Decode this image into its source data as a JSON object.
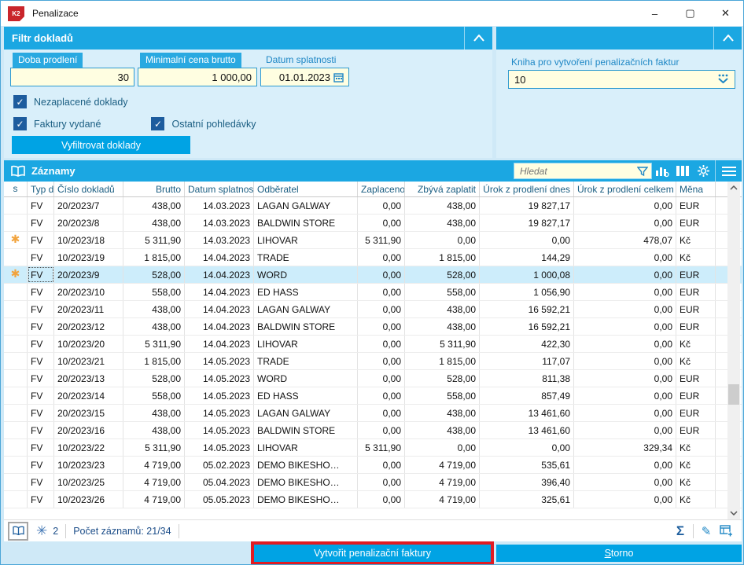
{
  "window": {
    "title": "Penalizace",
    "minimize": "–",
    "maximize": "▢",
    "close": "✕"
  },
  "filter_panel": {
    "title": "Filtr dokladů",
    "fields": [
      {
        "label": "Doba prodlení",
        "value": "30"
      },
      {
        "label": "Minimalní cena brutto",
        "value": "1 000,00"
      },
      {
        "label": "Datum splatnosti",
        "value": "01.01.2023"
      }
    ],
    "checkboxes": [
      {
        "label": "Nezaplacené doklady",
        "checked": "✓"
      },
      {
        "label": "Faktury vydané",
        "checked": "✓"
      },
      {
        "label": "Ostatní pohledávky",
        "checked": "✓"
      }
    ],
    "filter_button": "Vyfiltrovat doklady"
  },
  "book_panel": {
    "label": "Kniha pro vytvoření penalizačních faktur",
    "value": "10"
  },
  "records": {
    "title": "Záznamy",
    "search_placeholder": "Hledat",
    "columns": [
      "s",
      "Typ d",
      "Číslo dokladů",
      "Brutto",
      "Datum splatnosti",
      "Odběratel",
      "Zaplaceno",
      "Zbývá zaplatit",
      "Úrok z prodlení dnes",
      "Úrok z prodlení celkem",
      "Měna"
    ],
    "rows": [
      {
        "s": "",
        "typ": "FV",
        "cislo": "20/2023/7",
        "brutto": "438,00",
        "datum": "14.03.2023",
        "odberatel": "LAGAN GALWAY",
        "zaplaceno": "0,00",
        "zbyva": "438,00",
        "urok_dnes": "19 827,17",
        "urok_celkem": "0,00",
        "mena": "EUR",
        "selected": false
      },
      {
        "s": "",
        "typ": "FV",
        "cislo": "20/2023/8",
        "brutto": "438,00",
        "datum": "14.03.2023",
        "odberatel": "BALDWIN STORE",
        "zaplaceno": "0,00",
        "zbyva": "438,00",
        "urok_dnes": "19 827,17",
        "urok_celkem": "0,00",
        "mena": "EUR",
        "selected": false
      },
      {
        "s": "*",
        "typ": "FV",
        "cislo": "10/2023/18",
        "brutto": "5 311,90",
        "datum": "14.03.2023",
        "odberatel": "LIHOVAR",
        "zaplaceno": "5 311,90",
        "zbyva": "0,00",
        "urok_dnes": "0,00",
        "urok_celkem": "478,07",
        "mena": "Kč",
        "selected": false
      },
      {
        "s": "",
        "typ": "FV",
        "cislo": "10/2023/19",
        "brutto": "1 815,00",
        "datum": "14.04.2023",
        "odberatel": "TRADE",
        "zaplaceno": "0,00",
        "zbyva": "1 815,00",
        "urok_dnes": "144,29",
        "urok_celkem": "0,00",
        "mena": "Kč",
        "selected": false
      },
      {
        "s": "*",
        "typ": "FV",
        "cislo": "20/2023/9",
        "brutto": "528,00",
        "datum": "14.04.2023",
        "odberatel": "WORD",
        "zaplaceno": "0,00",
        "zbyva": "528,00",
        "urok_dnes": "1 000,08",
        "urok_celkem": "0,00",
        "mena": "EUR",
        "selected": true
      },
      {
        "s": "",
        "typ": "FV",
        "cislo": "20/2023/10",
        "brutto": "558,00",
        "datum": "14.04.2023",
        "odberatel": "ED HASS",
        "zaplaceno": "0,00",
        "zbyva": "558,00",
        "urok_dnes": "1 056,90",
        "urok_celkem": "0,00",
        "mena": "EUR",
        "selected": false
      },
      {
        "s": "",
        "typ": "FV",
        "cislo": "20/2023/11",
        "brutto": "438,00",
        "datum": "14.04.2023",
        "odberatel": "LAGAN GALWAY",
        "zaplaceno": "0,00",
        "zbyva": "438,00",
        "urok_dnes": "16 592,21",
        "urok_celkem": "0,00",
        "mena": "EUR",
        "selected": false
      },
      {
        "s": "",
        "typ": "FV",
        "cislo": "20/2023/12",
        "brutto": "438,00",
        "datum": "14.04.2023",
        "odberatel": "BALDWIN STORE",
        "zaplaceno": "0,00",
        "zbyva": "438,00",
        "urok_dnes": "16 592,21",
        "urok_celkem": "0,00",
        "mena": "EUR",
        "selected": false
      },
      {
        "s": "",
        "typ": "FV",
        "cislo": "10/2023/20",
        "brutto": "5 311,90",
        "datum": "14.04.2023",
        "odberatel": "LIHOVAR",
        "zaplaceno": "0,00",
        "zbyva": "5 311,90",
        "urok_dnes": "422,30",
        "urok_celkem": "0,00",
        "mena": "Kč",
        "selected": false
      },
      {
        "s": "",
        "typ": "FV",
        "cislo": "10/2023/21",
        "brutto": "1 815,00",
        "datum": "14.05.2023",
        "odberatel": "TRADE",
        "zaplaceno": "0,00",
        "zbyva": "1 815,00",
        "urok_dnes": "117,07",
        "urok_celkem": "0,00",
        "mena": "Kč",
        "selected": false
      },
      {
        "s": "",
        "typ": "FV",
        "cislo": "20/2023/13",
        "brutto": "528,00",
        "datum": "14.05.2023",
        "odberatel": "WORD",
        "zaplaceno": "0,00",
        "zbyva": "528,00",
        "urok_dnes": "811,38",
        "urok_celkem": "0,00",
        "mena": "EUR",
        "selected": false
      },
      {
        "s": "",
        "typ": "FV",
        "cislo": "20/2023/14",
        "brutto": "558,00",
        "datum": "14.05.2023",
        "odberatel": "ED HASS",
        "zaplaceno": "0,00",
        "zbyva": "558,00",
        "urok_dnes": "857,49",
        "urok_celkem": "0,00",
        "mena": "EUR",
        "selected": false
      },
      {
        "s": "",
        "typ": "FV",
        "cislo": "20/2023/15",
        "brutto": "438,00",
        "datum": "14.05.2023",
        "odberatel": "LAGAN GALWAY",
        "zaplaceno": "0,00",
        "zbyva": "438,00",
        "urok_dnes": "13 461,60",
        "urok_celkem": "0,00",
        "mena": "EUR",
        "selected": false
      },
      {
        "s": "",
        "typ": "FV",
        "cislo": "20/2023/16",
        "brutto": "438,00",
        "datum": "14.05.2023",
        "odberatel": "BALDWIN STORE",
        "zaplaceno": "0,00",
        "zbyva": "438,00",
        "urok_dnes": "13 461,60",
        "urok_celkem": "0,00",
        "mena": "EUR",
        "selected": false
      },
      {
        "s": "",
        "typ": "FV",
        "cislo": "10/2023/22",
        "brutto": "5 311,90",
        "datum": "14.05.2023",
        "odberatel": "LIHOVAR",
        "zaplaceno": "5 311,90",
        "zbyva": "0,00",
        "urok_dnes": "0,00",
        "urok_celkem": "329,34",
        "mena": "Kč",
        "selected": false
      },
      {
        "s": "",
        "typ": "FV",
        "cislo": "10/2023/23",
        "brutto": "4 719,00",
        "datum": "05.02.2023",
        "odberatel": "DEMO BIKESHO…",
        "zaplaceno": "0,00",
        "zbyva": "4 719,00",
        "urok_dnes": "535,61",
        "urok_celkem": "0,00",
        "mena": "Kč",
        "selected": false
      },
      {
        "s": "",
        "typ": "FV",
        "cislo": "10/2023/25",
        "brutto": "4 719,00",
        "datum": "05.04.2023",
        "odberatel": "DEMO BIKESHO…",
        "zaplaceno": "0,00",
        "zbyva": "4 719,00",
        "urok_dnes": "396,40",
        "urok_celkem": "0,00",
        "mena": "Kč",
        "selected": false
      },
      {
        "s": "",
        "typ": "FV",
        "cislo": "10/2023/26",
        "brutto": "4 719,00",
        "datum": "05.05.2023",
        "odberatel": "DEMO BIKESHO…",
        "zaplaceno": "0,00",
        "zbyva": "4 719,00",
        "urok_dnes": "325,61",
        "urok_celkem": "0,00",
        "mena": "Kč",
        "selected": false
      }
    ]
  },
  "status_bar": {
    "flag_count": "2",
    "record_count": "Počet záznamů: 21/34"
  },
  "footer": {
    "create_label": "Vytvořit penalizační faktury",
    "storno_first": "S",
    "storno_rest": "torno"
  },
  "colors": {
    "accent_blue": "#00a3e4",
    "header_blue": "#1ba7e2",
    "panel_bg": "#d9effa",
    "input_bg": "#fffee1",
    "checkbox_blue": "#1d5c9e",
    "selected_row": "#cdedfb",
    "flag_orange": "#f2a33c",
    "annotation_red": "#e11b22"
  }
}
